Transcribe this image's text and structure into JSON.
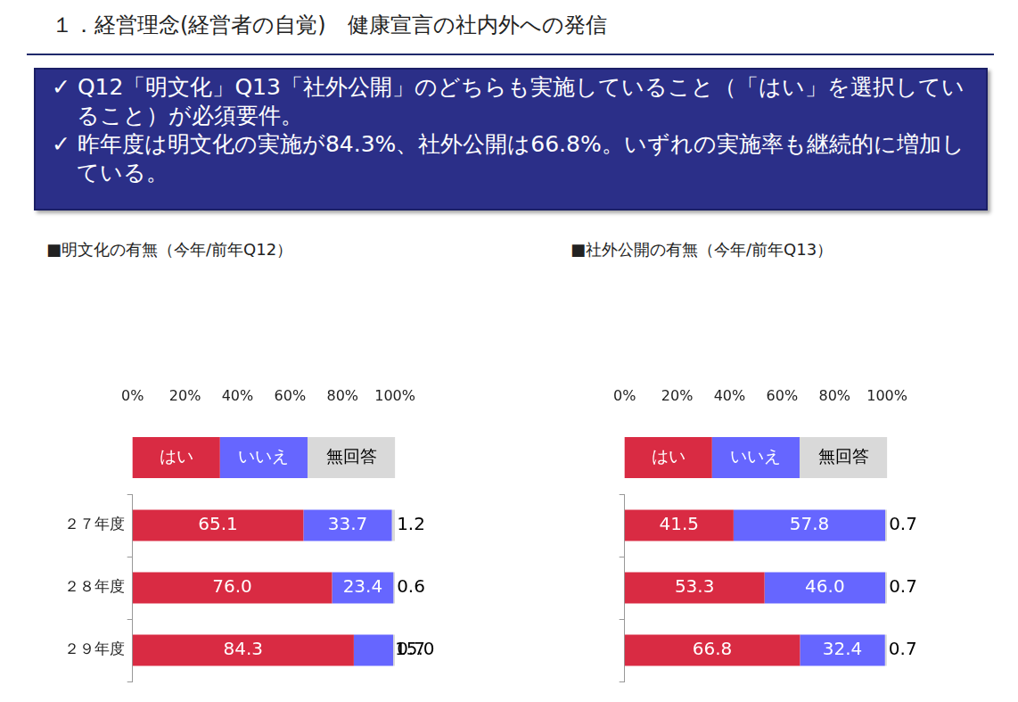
{
  "header": {
    "title": "１．経営理念(経営者の自覚)　健康宣言の社内外への発信"
  },
  "notes": [
    "✓ Q12「明文化」Q13「社外公開」のどちらも実施していること（「はい」を選択していること）が必須要件。",
    "✓ 昨年度は明文化の実施が84.3%、社外公開は66.8%。いずれの実施率も継続的に増加している。"
  ],
  "chart_data": [
    {
      "type": "bar",
      "title": "■明文化の有無（今年/前年Q12）",
      "orientation": "horizontal",
      "stacked": true,
      "data_labels": true,
      "grid": false,
      "legend": "top",
      "categories": [
        "２７年度",
        "２８年度",
        "２９年度"
      ],
      "series": [
        {
          "name": "はい",
          "color": "#d92b43",
          "values": [
            65.1,
            76.0,
            84.3
          ],
          "value_labels": [
            "65.1",
            "76.0",
            "84.3"
          ]
        },
        {
          "name": "いいえ",
          "color": "#6666ff",
          "values": [
            33.7,
            23.4,
            15.0
          ],
          "value_labels": [
            "33.7",
            "23.4",
            "15.0"
          ]
        },
        {
          "name": "無回答",
          "color": "#d9d9d9",
          "values": [
            1.2,
            0.6,
            0.7
          ],
          "value_labels": [
            "1.2",
            "0.6",
            "0.7"
          ]
        }
      ],
      "xlim": [
        0,
        100
      ],
      "xticks": [
        {
          "value": 0,
          "label": "0%"
        },
        {
          "value": 20,
          "label": "20%"
        },
        {
          "value": 40,
          "label": "40%"
        },
        {
          "value": 60,
          "label": "60%"
        },
        {
          "value": 80,
          "label": "80%"
        },
        {
          "value": 100,
          "label": "100%"
        }
      ]
    },
    {
      "type": "bar",
      "title": "■社外公開の有無（今年/前年Q13）",
      "orientation": "horizontal",
      "stacked": true,
      "data_labels": true,
      "grid": false,
      "legend": "top",
      "tick_labels": "x",
      "categories": [
        null,
        null,
        null
      ],
      "series": [
        {
          "name": "はい",
          "color": "#d92b43",
          "values": [
            41.5,
            53.3,
            66.8
          ],
          "value_labels": [
            "41.5",
            "53.3",
            "66.8"
          ]
        },
        {
          "name": "いいえ",
          "color": "#6666ff",
          "values": [
            57.8,
            46.0,
            32.4
          ],
          "value_labels": [
            "57.8",
            "46.0",
            "32.4"
          ]
        },
        {
          "name": "無回答",
          "color": "#d9d9d9",
          "values": [
            0.7,
            0.7,
            0.7
          ],
          "value_labels": [
            "0.7",
            "0.7",
            "0.7"
          ]
        }
      ],
      "xlim": [
        0,
        100
      ],
      "xticks": [
        {
          "value": 0,
          "label": "0%"
        },
        {
          "value": 20,
          "label": "20%"
        },
        {
          "value": 40,
          "label": "40%"
        },
        {
          "value": 60,
          "label": "60%"
        },
        {
          "value": 80,
          "label": "80%"
        },
        {
          "value": 100,
          "label": "100%"
        }
      ]
    }
  ]
}
